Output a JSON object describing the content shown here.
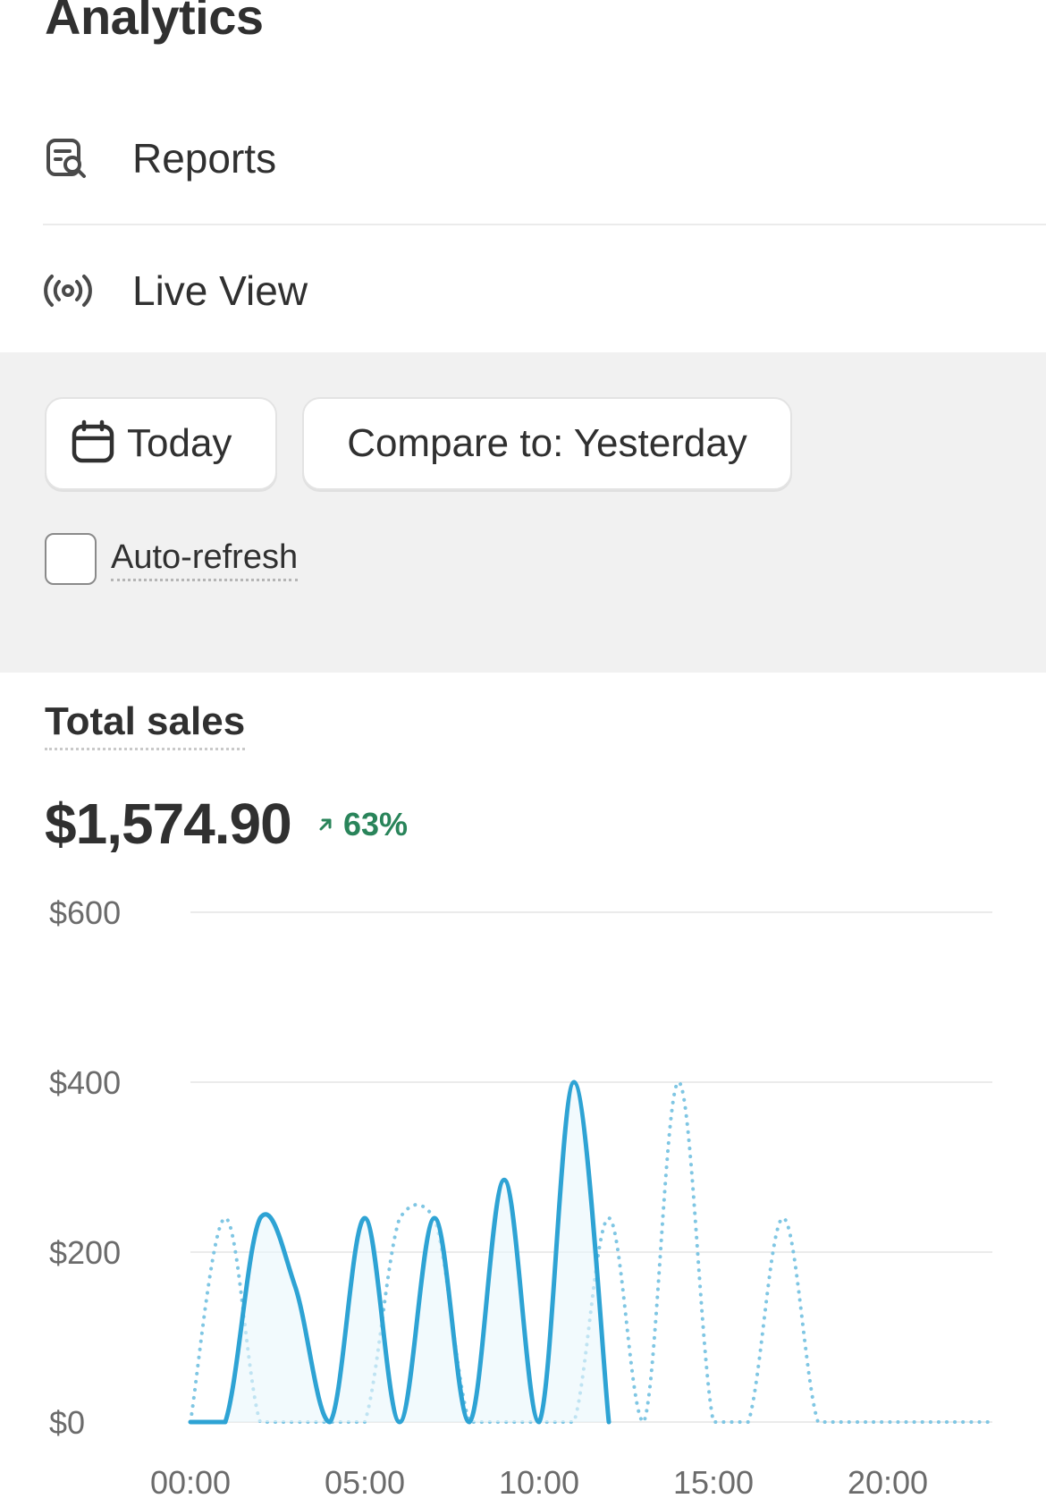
{
  "header": {
    "title": "Analytics"
  },
  "nav": {
    "items": [
      {
        "label": "Reports",
        "icon": "reports-icon"
      },
      {
        "label": "Live View",
        "icon": "live-broadcast-icon"
      }
    ]
  },
  "filters": {
    "date_label": "Today",
    "date_icon": "calendar-icon",
    "compare_label": "Compare to: Yesterday",
    "auto_refresh_label": "Auto-refresh",
    "auto_refresh_checked": false
  },
  "metric": {
    "title": "Total sales",
    "value": "$1,574.90",
    "change": "63%",
    "change_direction": "up",
    "change_color": "#29845a"
  },
  "chart_data": {
    "type": "line",
    "x": [
      0,
      1,
      2,
      3,
      4,
      5,
      6,
      7,
      8,
      9,
      10,
      11,
      12,
      13,
      14,
      15,
      16,
      17,
      18,
      19,
      20,
      21,
      22,
      23
    ],
    "xticks": [
      "00:00",
      "05:00",
      "10:00",
      "15:00",
      "20:00"
    ],
    "xtick_positions": [
      0,
      5,
      10,
      15,
      20
    ],
    "yticks": [
      "$0",
      "$200",
      "$400",
      "$600"
    ],
    "ylim": [
      0,
      600
    ],
    "series": [
      {
        "style": "solid",
        "color": "#2ea3d4",
        "values": [
          0,
          0,
          240,
          160,
          0,
          240,
          0,
          240,
          0,
          285,
          0,
          400,
          0,
          null,
          null,
          null,
          null,
          null,
          null,
          null,
          null,
          null,
          null,
          null
        ]
      },
      {
        "style": "dotted",
        "color": "#7fc6e3",
        "values": [
          0,
          240,
          0,
          0,
          0,
          0,
          240,
          240,
          0,
          0,
          0,
          0,
          240,
          0,
          400,
          0,
          0,
          240,
          0,
          0,
          0,
          0,
          0,
          0
        ]
      }
    ],
    "grid": true
  }
}
